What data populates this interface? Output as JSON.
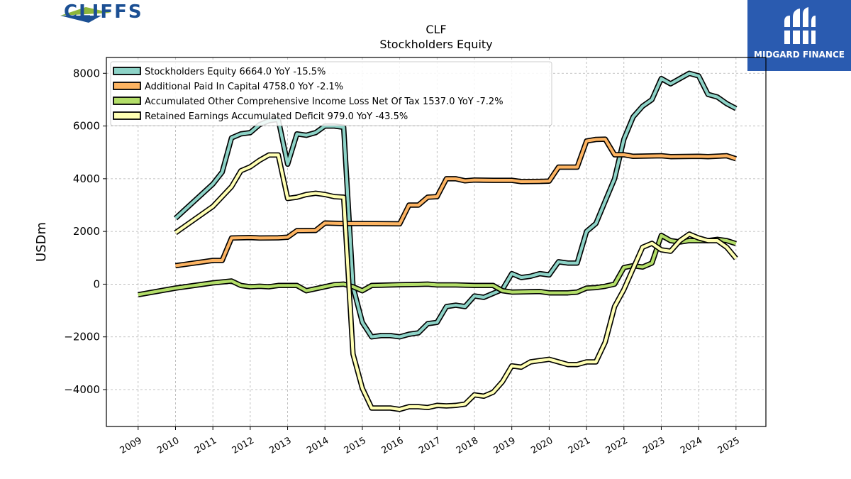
{
  "branding": {
    "left_logo_text": "CLIFFS",
    "right_logo_text": "MIDGARD FINANCE",
    "colors": {
      "cliffs_blue": "#1b4f93",
      "cliffs_green": "#8db63c",
      "midgard_blue": "#2a5bb0"
    }
  },
  "chart_data": {
    "type": "line",
    "title": "CLF",
    "subtitle": "Stockholders  Equity",
    "ylabel": "USDm",
    "xlabel": "",
    "ylim": [
      -5400,
      8600
    ],
    "xlim": [
      2008.15,
      2025.8
    ],
    "yticks": [
      -4000,
      -2000,
      0,
      2000,
      4000,
      6000,
      8000
    ],
    "ytick_labels": [
      "−4000",
      "−2000",
      "0",
      "2000",
      "4000",
      "6000",
      "8000"
    ],
    "xticks": [
      2009,
      2010,
      2011,
      2012,
      2013,
      2014,
      2015,
      2016,
      2017,
      2018,
      2019,
      2020,
      2021,
      2022,
      2023,
      2024,
      2025
    ],
    "grid": true,
    "legend_position": "top-left",
    "series": [
      {
        "name": "Stockholders Equity  6664.0 YoY -15.5%",
        "color": "#8dd3c7",
        "points": [
          [
            2010.0,
            2500
          ],
          [
            2011.0,
            3800
          ],
          [
            2011.25,
            4250
          ],
          [
            2011.5,
            5550
          ],
          [
            2011.75,
            5700
          ],
          [
            2012.0,
            5750
          ],
          [
            2012.25,
            6050
          ],
          [
            2012.5,
            6200
          ],
          [
            2012.75,
            6250
          ],
          [
            2013.0,
            4550
          ],
          [
            2013.25,
            5700
          ],
          [
            2013.5,
            5650
          ],
          [
            2013.75,
            5750
          ],
          [
            2014.0,
            6000
          ],
          [
            2014.25,
            6000
          ],
          [
            2014.5,
            5950
          ],
          [
            2014.75,
            -100
          ],
          [
            2015.0,
            -1450
          ],
          [
            2015.25,
            -2000
          ],
          [
            2015.5,
            -1950
          ],
          [
            2015.75,
            -1950
          ],
          [
            2016.0,
            -2000
          ],
          [
            2016.25,
            -1900
          ],
          [
            2016.5,
            -1850
          ],
          [
            2016.75,
            -1500
          ],
          [
            2017.0,
            -1450
          ],
          [
            2017.25,
            -850
          ],
          [
            2017.5,
            -800
          ],
          [
            2017.75,
            -850
          ],
          [
            2018.0,
            -450
          ],
          [
            2018.25,
            -500
          ],
          [
            2018.5,
            -350
          ],
          [
            2018.75,
            -200
          ],
          [
            2019.0,
            400
          ],
          [
            2019.25,
            250
          ],
          [
            2019.5,
            300
          ],
          [
            2019.75,
            400
          ],
          [
            2020.0,
            350
          ],
          [
            2020.25,
            850
          ],
          [
            2020.5,
            800
          ],
          [
            2020.75,
            800
          ],
          [
            2021.0,
            2000
          ],
          [
            2021.25,
            2300
          ],
          [
            2021.5,
            3150
          ],
          [
            2021.75,
            4000
          ],
          [
            2022.0,
            5500
          ],
          [
            2022.25,
            6350
          ],
          [
            2022.5,
            6750
          ],
          [
            2022.75,
            7000
          ],
          [
            2023.0,
            7800
          ],
          [
            2023.25,
            7600
          ],
          [
            2023.5,
            7800
          ],
          [
            2023.75,
            8000
          ],
          [
            2024.0,
            7900
          ],
          [
            2024.25,
            7200
          ],
          [
            2024.5,
            7100
          ],
          [
            2024.75,
            6850
          ],
          [
            2025.0,
            6664
          ]
        ]
      },
      {
        "name": "Additional Paid In Capital  4758.0 YoY -2.1%",
        "color": "#fdb462",
        "points": [
          [
            2010.0,
            700
          ],
          [
            2011.0,
            900
          ],
          [
            2011.25,
            900
          ],
          [
            2011.5,
            1750
          ],
          [
            2012.0,
            1770
          ],
          [
            2012.25,
            1750
          ],
          [
            2012.75,
            1760
          ],
          [
            2013.0,
            1780
          ],
          [
            2013.25,
            2030
          ],
          [
            2013.75,
            2040
          ],
          [
            2014.0,
            2320
          ],
          [
            2014.5,
            2300
          ],
          [
            2015.0,
            2300
          ],
          [
            2016.0,
            2290
          ],
          [
            2016.25,
            3000
          ],
          [
            2016.5,
            3000
          ],
          [
            2016.75,
            3300
          ],
          [
            2017.0,
            3320
          ],
          [
            2017.25,
            4000
          ],
          [
            2017.5,
            4000
          ],
          [
            2017.75,
            3920
          ],
          [
            2018.0,
            3950
          ],
          [
            2018.5,
            3940
          ],
          [
            2019.0,
            3940
          ],
          [
            2019.25,
            3890
          ],
          [
            2019.75,
            3900
          ],
          [
            2020.0,
            3910
          ],
          [
            2020.25,
            4440
          ],
          [
            2020.75,
            4440
          ],
          [
            2021.0,
            5430
          ],
          [
            2021.25,
            5490
          ],
          [
            2021.5,
            5500
          ],
          [
            2021.75,
            4910
          ],
          [
            2022.0,
            4910
          ],
          [
            2022.25,
            4850
          ],
          [
            2023.0,
            4870
          ],
          [
            2023.25,
            4840
          ],
          [
            2024.0,
            4850
          ],
          [
            2024.25,
            4840
          ],
          [
            2024.75,
            4870
          ],
          [
            2025.0,
            4758
          ]
        ]
      },
      {
        "name": "Accumulated Other Comprehensive Income Loss Net Of Tax  1537.0 YoY -7.2%",
        "color": "#b3de69",
        "points": [
          [
            2009.0,
            -400
          ],
          [
            2010.0,
            -150
          ],
          [
            2011.0,
            50
          ],
          [
            2011.5,
            120
          ],
          [
            2011.75,
            -50
          ],
          [
            2012.0,
            -100
          ],
          [
            2012.25,
            -80
          ],
          [
            2012.5,
            -100
          ],
          [
            2012.75,
            -50
          ],
          [
            2013.0,
            -50
          ],
          [
            2013.25,
            -50
          ],
          [
            2013.5,
            -250
          ],
          [
            2014.0,
            -100
          ],
          [
            2014.25,
            -20
          ],
          [
            2014.5,
            0
          ],
          [
            2014.75,
            -100
          ],
          [
            2015.0,
            -250
          ],
          [
            2015.25,
            -50
          ],
          [
            2016.0,
            -20
          ],
          [
            2016.5,
            -10
          ],
          [
            2016.75,
            0
          ],
          [
            2017.0,
            -30
          ],
          [
            2017.5,
            -30
          ],
          [
            2018.0,
            -50
          ],
          [
            2018.5,
            -50
          ],
          [
            2018.75,
            -250
          ],
          [
            2019.0,
            -300
          ],
          [
            2019.75,
            -280
          ],
          [
            2020.0,
            -330
          ],
          [
            2020.5,
            -330
          ],
          [
            2020.75,
            -300
          ],
          [
            2021.0,
            -150
          ],
          [
            2021.25,
            -130
          ],
          [
            2021.5,
            -80
          ],
          [
            2021.75,
            0
          ],
          [
            2022.0,
            630
          ],
          [
            2022.25,
            700
          ],
          [
            2022.5,
            650
          ],
          [
            2022.75,
            800
          ],
          [
            2023.0,
            1850
          ],
          [
            2023.25,
            1650
          ],
          [
            2023.5,
            1600
          ],
          [
            2023.75,
            1650
          ],
          [
            2024.0,
            1650
          ],
          [
            2024.25,
            1650
          ],
          [
            2024.5,
            1700
          ],
          [
            2024.75,
            1650
          ],
          [
            2025.0,
            1537
          ]
        ]
      },
      {
        "name": "Retained Earnings Accumulated Deficit  979.0 YoY -43.5%",
        "color": "#ffffb3",
        "points": [
          [
            2010.0,
            1950
          ],
          [
            2011.0,
            2950
          ],
          [
            2011.5,
            3700
          ],
          [
            2011.75,
            4300
          ],
          [
            2012.0,
            4450
          ],
          [
            2012.25,
            4700
          ],
          [
            2012.5,
            4900
          ],
          [
            2012.75,
            4900
          ],
          [
            2013.0,
            3250
          ],
          [
            2013.25,
            3300
          ],
          [
            2013.5,
            3400
          ],
          [
            2013.75,
            3450
          ],
          [
            2014.0,
            3400
          ],
          [
            2014.25,
            3320
          ],
          [
            2014.5,
            3300
          ],
          [
            2014.75,
            -2650
          ],
          [
            2015.0,
            -3950
          ],
          [
            2015.25,
            -4700
          ],
          [
            2015.5,
            -4700
          ],
          [
            2015.75,
            -4700
          ],
          [
            2016.0,
            -4750
          ],
          [
            2016.25,
            -4650
          ],
          [
            2016.5,
            -4650
          ],
          [
            2016.75,
            -4680
          ],
          [
            2017.0,
            -4600
          ],
          [
            2017.25,
            -4620
          ],
          [
            2017.5,
            -4600
          ],
          [
            2017.75,
            -4550
          ],
          [
            2018.0,
            -4200
          ],
          [
            2018.25,
            -4250
          ],
          [
            2018.5,
            -4100
          ],
          [
            2018.75,
            -3700
          ],
          [
            2019.0,
            -3100
          ],
          [
            2019.25,
            -3150
          ],
          [
            2019.5,
            -2950
          ],
          [
            2019.75,
            -2900
          ],
          [
            2020.0,
            -2850
          ],
          [
            2020.25,
            -2950
          ],
          [
            2020.5,
            -3050
          ],
          [
            2020.75,
            -3050
          ],
          [
            2021.0,
            -2950
          ],
          [
            2021.25,
            -2950
          ],
          [
            2021.5,
            -2200
          ],
          [
            2021.75,
            -850
          ],
          [
            2022.0,
            -200
          ],
          [
            2022.25,
            600
          ],
          [
            2022.5,
            1400
          ],
          [
            2022.75,
            1550
          ],
          [
            2023.0,
            1300
          ],
          [
            2023.25,
            1250
          ],
          [
            2023.5,
            1650
          ],
          [
            2023.75,
            1900
          ],
          [
            2024.0,
            1750
          ],
          [
            2024.25,
            1650
          ],
          [
            2024.5,
            1650
          ],
          [
            2024.75,
            1400
          ],
          [
            2025.0,
            979
          ]
        ]
      }
    ]
  }
}
